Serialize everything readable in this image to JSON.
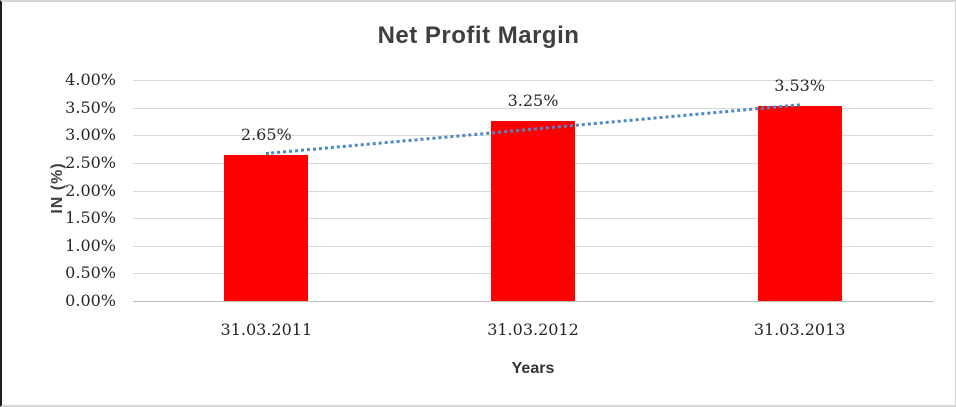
{
  "chart_data": {
    "type": "bar",
    "title": "Net Profit Margin",
    "xlabel": "Years",
    "ylabel": "IN (%)",
    "categories": [
      "31.03.2011",
      "31.03.2012",
      "31.03.2013"
    ],
    "series": [
      {
        "name": "Net Profit Margin",
        "values": [
          2.65,
          3.25,
          3.53
        ]
      }
    ],
    "data_labels": [
      "2.65%",
      "3.25%",
      "3.53%"
    ],
    "ylim": [
      0,
      4.0
    ],
    "ytick_step": 0.5,
    "ytick_labels": [
      "0.00%",
      "0.50%",
      "1.00%",
      "1.50%",
      "2.00%",
      "2.50%",
      "3.00%",
      "3.50%",
      "4.00%"
    ],
    "grid": true,
    "legend": "none",
    "trendline": {
      "style": "dotted",
      "color": "#4e87c9",
      "start_value": 2.7,
      "end_value": 3.58
    },
    "colors": {
      "bar": "#ff0000",
      "gridline": "#d9d9d9",
      "axis_line": "#bfbfbf",
      "title_text": "#3f3f3f",
      "label_text": "#262626"
    }
  }
}
